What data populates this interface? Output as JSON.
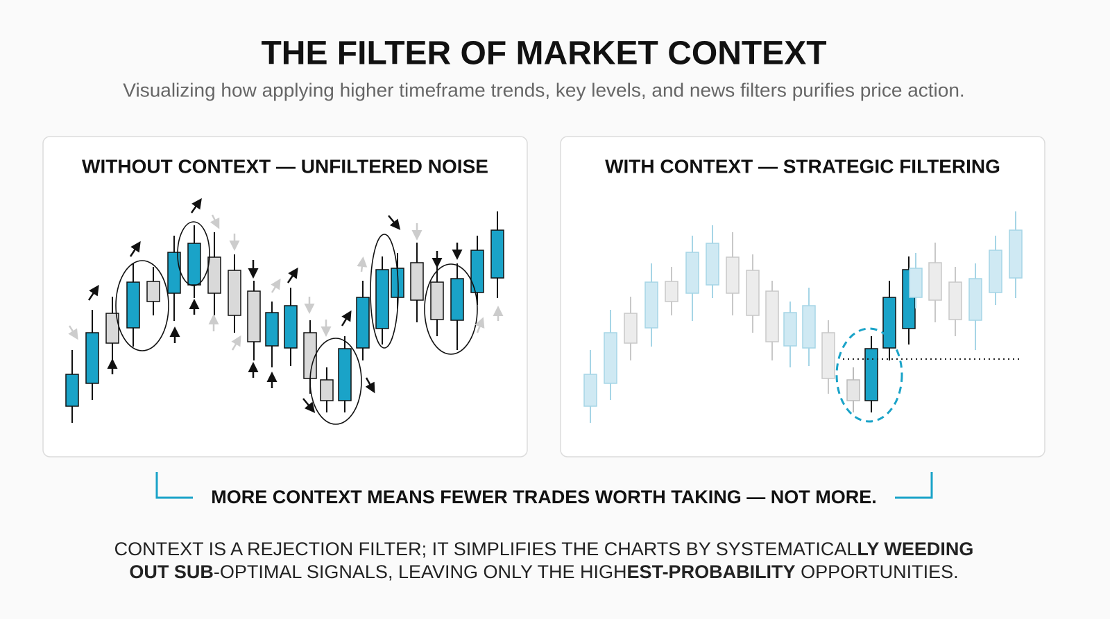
{
  "header": {
    "title": "THE FILTER OF MARKET CONTEXT",
    "subtitle": "Visualizing how applying higher timeframe trends, key levels, and news filters purifies price action."
  },
  "panels": [
    {
      "title": "WITHOUT CONTEXT — UNFILTERED NOISE"
    },
    {
      "title": "WITH CONTEXT — STRATEGIC FILTERING"
    }
  ],
  "callout": "MORE CONTEXT MEANS FEWER TRADES WORTH TAKING — NOT MORE.",
  "footer": {
    "lines": [
      [
        {
          "text": "CONTEXT IS A REJECTION FILTER; IT SIMPLIFIES THE CHARTS BY SYSTEMATICAL",
          "bold": false
        },
        {
          "text": "LY WEEDING",
          "bold": true
        }
      ],
      [
        {
          "text": "OUT SUB",
          "bold": true
        },
        {
          "text": "-OPTIMAL SIGNALS, LEAVING ONLY THE HIGH",
          "bold": false
        },
        {
          "text": "EST-PROBABILITY",
          "bold": true
        },
        {
          "text": " OPPORTUNITIES.",
          "bold": false
        }
      ]
    ]
  }
}
